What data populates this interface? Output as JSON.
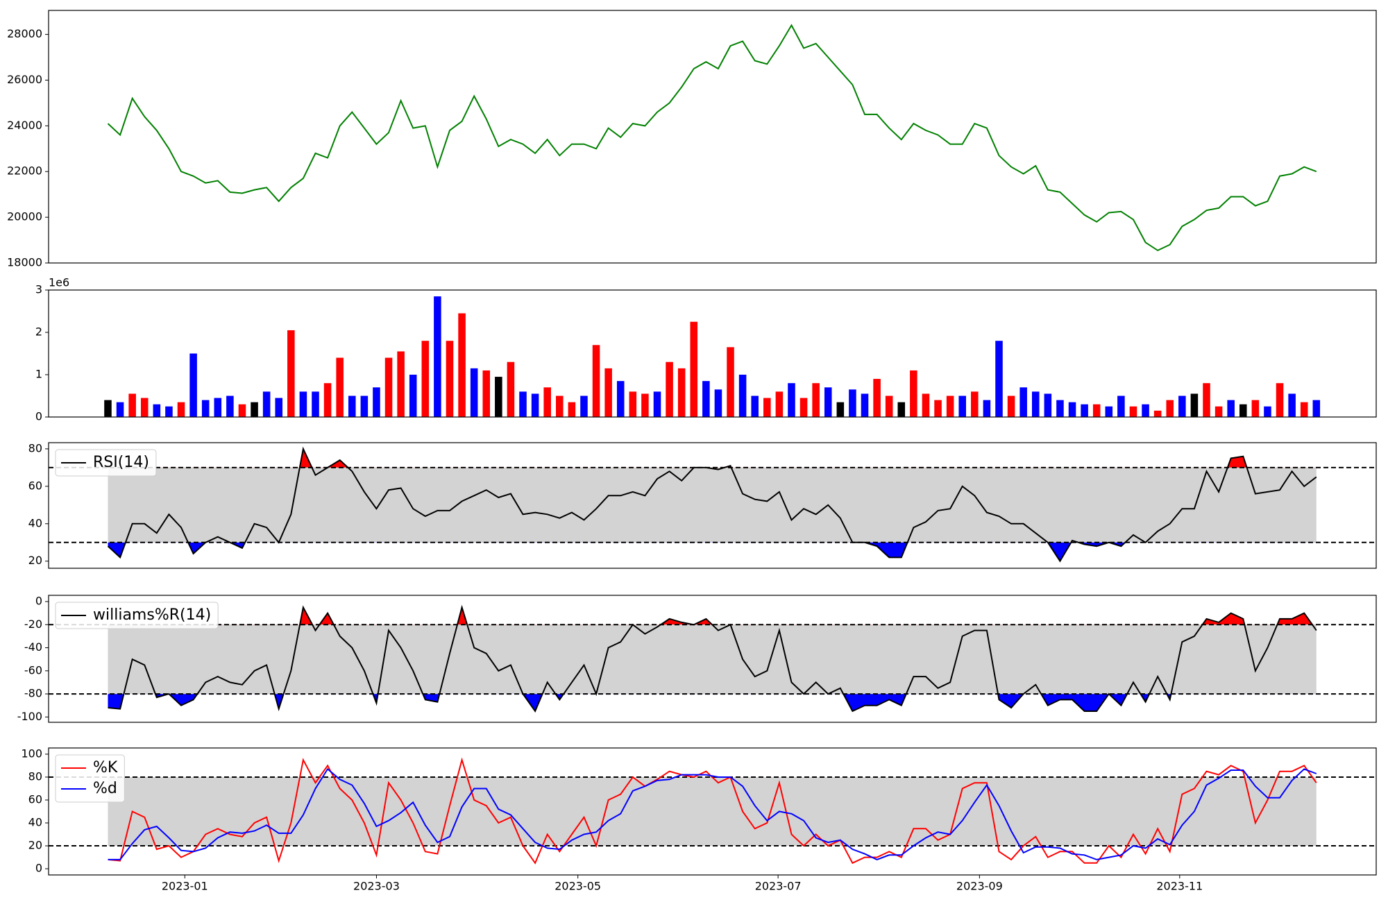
{
  "chart_data": [
    {
      "type": "line",
      "color": "green",
      "values": [
        24100,
        23600,
        25200,
        24400,
        23800,
        23000,
        22000,
        21800,
        21500,
        21600,
        21100,
        21050,
        21200,
        21300,
        20700,
        21300,
        21700,
        22800,
        22600,
        24000,
        24600,
        23900,
        23200,
        23700,
        25100,
        23900,
        24000,
        22200,
        23800,
        24200,
        25300,
        24300,
        23100,
        23400,
        23200,
        22800,
        23400,
        22700,
        23200,
        23200,
        23000,
        23900,
        23500,
        24100,
        24000,
        24600,
        25000,
        25700,
        26500,
        26800,
        26500,
        27500,
        27700,
        26850,
        26700,
        27500,
        28400,
        27400,
        27600,
        27000,
        26400,
        25800,
        24500,
        24500,
        23900,
        23400,
        24100,
        23800,
        23600,
        23200,
        23200,
        24100,
        23900,
        22700,
        22200,
        21900,
        22250,
        21200,
        21100,
        20600,
        20100,
        19800,
        20200,
        20250,
        19900,
        18900,
        18550,
        18800,
        19600,
        19900,
        20300,
        20400,
        20900,
        20900,
        20500,
        20700,
        21800,
        21900,
        22200,
        22000
      ],
      "xlim": [
        -4.86,
        103.9
      ],
      "ylim": [
        18000,
        29050
      ],
      "yticks": [
        18000,
        20000,
        22000,
        24000,
        26000,
        28000
      ]
    },
    {
      "type": "bar",
      "offset_text": "1e6",
      "values": [
        0.4,
        0.35,
        0.55,
        0.45,
        0.3,
        0.25,
        0.35,
        1.5,
        0.4,
        0.45,
        0.5,
        0.3,
        0.35,
        0.6,
        0.45,
        2.05,
        0.6,
        0.6,
        0.8,
        1.4,
        0.5,
        0.5,
        0.7,
        1.4,
        1.55,
        1.0,
        1.8,
        2.85,
        1.8,
        2.45,
        1.15,
        1.1,
        0.95,
        1.3,
        0.6,
        0.55,
        0.7,
        0.5,
        0.35,
        0.5,
        1.7,
        1.15,
        0.85,
        0.6,
        0.55,
        0.6,
        1.3,
        1.15,
        2.25,
        0.85,
        0.65,
        1.65,
        1.0,
        0.5,
        0.45,
        0.6,
        0.8,
        0.45,
        0.8,
        0.7,
        0.35,
        0.65,
        0.55,
        0.9,
        0.5,
        0.35,
        1.1,
        0.55,
        0.4,
        0.5,
        0.5,
        0.6,
        0.4,
        1.8,
        0.5,
        0.7,
        0.6,
        0.55,
        0.4,
        0.35,
        0.3,
        0.3,
        0.25,
        0.5,
        0.25,
        0.3,
        0.15,
        0.4,
        0.5,
        0.55,
        0.8,
        0.25,
        0.4,
        0.3,
        0.4,
        0.25,
        0.8,
        0.55,
        0.35,
        0.4
      ],
      "colors": [
        "black",
        "blue",
        "red",
        "red",
        "blue",
        "blue",
        "red",
        "blue",
        "blue",
        "blue",
        "blue",
        "red",
        "black",
        "blue",
        "blue",
        "red",
        "blue",
        "blue",
        "red",
        "red",
        "blue",
        "blue",
        "blue",
        "red",
        "red",
        "blue",
        "red",
        "blue",
        "red",
        "red",
        "blue",
        "red",
        "black",
        "red",
        "blue",
        "blue",
        "red",
        "red",
        "red",
        "blue",
        "red",
        "red",
        "blue",
        "red",
        "red",
        "blue",
        "red",
        "red",
        "red",
        "blue",
        "blue",
        "red",
        "blue",
        "blue",
        "red",
        "red",
        "blue",
        "red",
        "red",
        "blue",
        "black",
        "blue",
        "blue",
        "red",
        "red",
        "black",
        "red",
        "red",
        "red",
        "red",
        "blue",
        "red",
        "blue",
        "blue",
        "red",
        "blue",
        "blue",
        "blue",
        "blue",
        "blue",
        "blue",
        "red",
        "blue",
        "blue",
        "red",
        "blue",
        "red",
        "red",
        "blue",
        "black",
        "red",
        "red",
        "blue",
        "black",
        "red",
        "blue",
        "red",
        "blue",
        "red",
        "blue"
      ],
      "xlim": [
        -4.86,
        103.9
      ],
      "ylim": [
        0,
        3
      ],
      "yticks": [
        0,
        1,
        2,
        3
      ]
    },
    {
      "type": "line",
      "legend": "upper left",
      "thresholds": [
        30,
        70
      ],
      "band_color": "#d3d3d3",
      "fill_above_color": "red",
      "fill_below_color": "blue",
      "series": [
        {
          "name": "RSI(14)",
          "color": "black",
          "values": [
            28,
            22,
            40,
            40,
            35,
            45,
            38,
            24,
            30,
            33,
            30,
            27,
            40,
            38,
            30,
            45,
            80,
            66,
            70,
            74,
            68,
            57,
            48,
            58,
            59,
            48,
            44,
            47,
            47,
            52,
            55,
            58,
            54,
            56,
            45,
            46,
            45,
            43,
            46,
            42,
            48,
            55,
            55,
            57,
            55,
            64,
            68,
            63,
            70,
            70,
            69,
            71,
            56,
            53,
            52,
            57,
            42,
            48,
            45,
            50,
            43,
            30,
            30,
            28,
            22,
            22,
            38,
            41,
            47,
            48,
            60,
            55,
            46,
            44,
            40,
            40,
            35,
            30,
            20,
            31,
            29,
            28,
            30,
            28,
            34,
            30,
            36,
            40,
            48,
            48,
            68,
            57,
            75,
            76,
            56,
            57,
            58,
            68,
            60,
            65
          ]
        }
      ],
      "xlim": [
        -4.86,
        103.9
      ],
      "ylim": [
        16.2,
        83.3
      ],
      "yticks": [
        20,
        40,
        60,
        80
      ]
    },
    {
      "type": "line",
      "legend": "upper left",
      "thresholds": [
        -80,
        -20
      ],
      "band_color": "#d3d3d3",
      "fill_above_color": "red",
      "fill_below_color": "blue",
      "series": [
        {
          "name": "williams%R(14)",
          "color": "black",
          "values": [
            -92,
            -93,
            -50,
            -55,
            -83,
            -80,
            -90,
            -85,
            -70,
            -65,
            -70,
            -72,
            -60,
            -55,
            -93,
            -60,
            -5,
            -25,
            -10,
            -30,
            -40,
            -60,
            -88,
            -25,
            -40,
            -60,
            -85,
            -87,
            -45,
            -5,
            -40,
            -45,
            -60,
            -55,
            -80,
            -95,
            -70,
            -85,
            -70,
            -55,
            -80,
            -40,
            -35,
            -20,
            -28,
            -22,
            -15,
            -18,
            -20,
            -15,
            -25,
            -20,
            -50,
            -65,
            -60,
            -25,
            -70,
            -80,
            -70,
            -80,
            -75,
            -95,
            -90,
            -90,
            -85,
            -90,
            -65,
            -65,
            -75,
            -70,
            -30,
            -25,
            -25,
            -85,
            -92,
            -80,
            -72,
            -90,
            -85,
            -85,
            -95,
            -95,
            -80,
            -90,
            -70,
            -87,
            -65,
            -85,
            -35,
            -30,
            -15,
            -18,
            -10,
            -15,
            -60,
            -40,
            -15,
            -15,
            -10,
            -25
          ]
        }
      ],
      "xlim": [
        -4.86,
        103.9
      ],
      "ylim": [
        -104.6,
        5.4
      ],
      "yticks": [
        -100,
        -80,
        -60,
        -40,
        -20,
        0
      ]
    },
    {
      "type": "line",
      "legend": "upper left",
      "thresholds": [
        20,
        80
      ],
      "band_color": "#d3d3d3",
      "series": [
        {
          "name": "%K",
          "color": "red",
          "values": [
            8,
            7,
            50,
            45,
            17,
            20,
            10,
            15,
            30,
            35,
            30,
            28,
            40,
            45,
            7,
            40,
            95,
            75,
            90,
            70,
            60,
            40,
            12,
            75,
            60,
            40,
            15,
            13,
            55,
            95,
            60,
            55,
            40,
            45,
            20,
            5,
            30,
            15,
            30,
            45,
            20,
            60,
            65,
            80,
            72,
            78,
            85,
            82,
            80,
            85,
            75,
            80,
            50,
            35,
            40,
            75,
            30,
            20,
            30,
            20,
            25,
            5,
            10,
            10,
            15,
            10,
            35,
            35,
            25,
            30,
            70,
            75,
            75,
            15,
            8,
            20,
            28,
            10,
            15,
            15,
            5,
            5,
            20,
            10,
            30,
            13,
            35,
            15,
            65,
            70,
            85,
            82,
            90,
            85,
            40,
            60,
            85,
            85,
            90,
            75
          ]
        },
        {
          "name": "%d",
          "color": "blue",
          "values": [
            8,
            8,
            22,
            34,
            37,
            27,
            16,
            15,
            18,
            27,
            32,
            31,
            33,
            38,
            31,
            31,
            47,
            70,
            87,
            78,
            73,
            57,
            37,
            42,
            49,
            58,
            38,
            23,
            28,
            54,
            70,
            70,
            52,
            47,
            35,
            23,
            18,
            17,
            25,
            30,
            32,
            42,
            48,
            68,
            72,
            77,
            78,
            82,
            82,
            82,
            80,
            80,
            72,
            55,
            42,
            50,
            48,
            42,
            27,
            23,
            25,
            17,
            13,
            8,
            12,
            12,
            20,
            27,
            32,
            30,
            42,
            58,
            73,
            55,
            33,
            14,
            19,
            19,
            18,
            13,
            12,
            8,
            10,
            12,
            20,
            18,
            26,
            21,
            38,
            50,
            73,
            79,
            86,
            86,
            72,
            62,
            62,
            77,
            87,
            83
          ]
        }
      ],
      "xlim": [
        -4.86,
        103.9
      ],
      "ylim": [
        -5.4,
        105.4
      ],
      "yticks": [
        0,
        20,
        40,
        60,
        80,
        100
      ],
      "xticks": [
        {
          "value": 6.3,
          "label": "2023-01"
        },
        {
          "value": 22.0,
          "label": "2023-03"
        },
        {
          "value": 38.5,
          "label": "2023-05"
        },
        {
          "value": 54.9,
          "label": "2023-07"
        },
        {
          "value": 71.4,
          "label": "2023-09"
        },
        {
          "value": 87.8,
          "label": "2023-11"
        }
      ]
    }
  ]
}
